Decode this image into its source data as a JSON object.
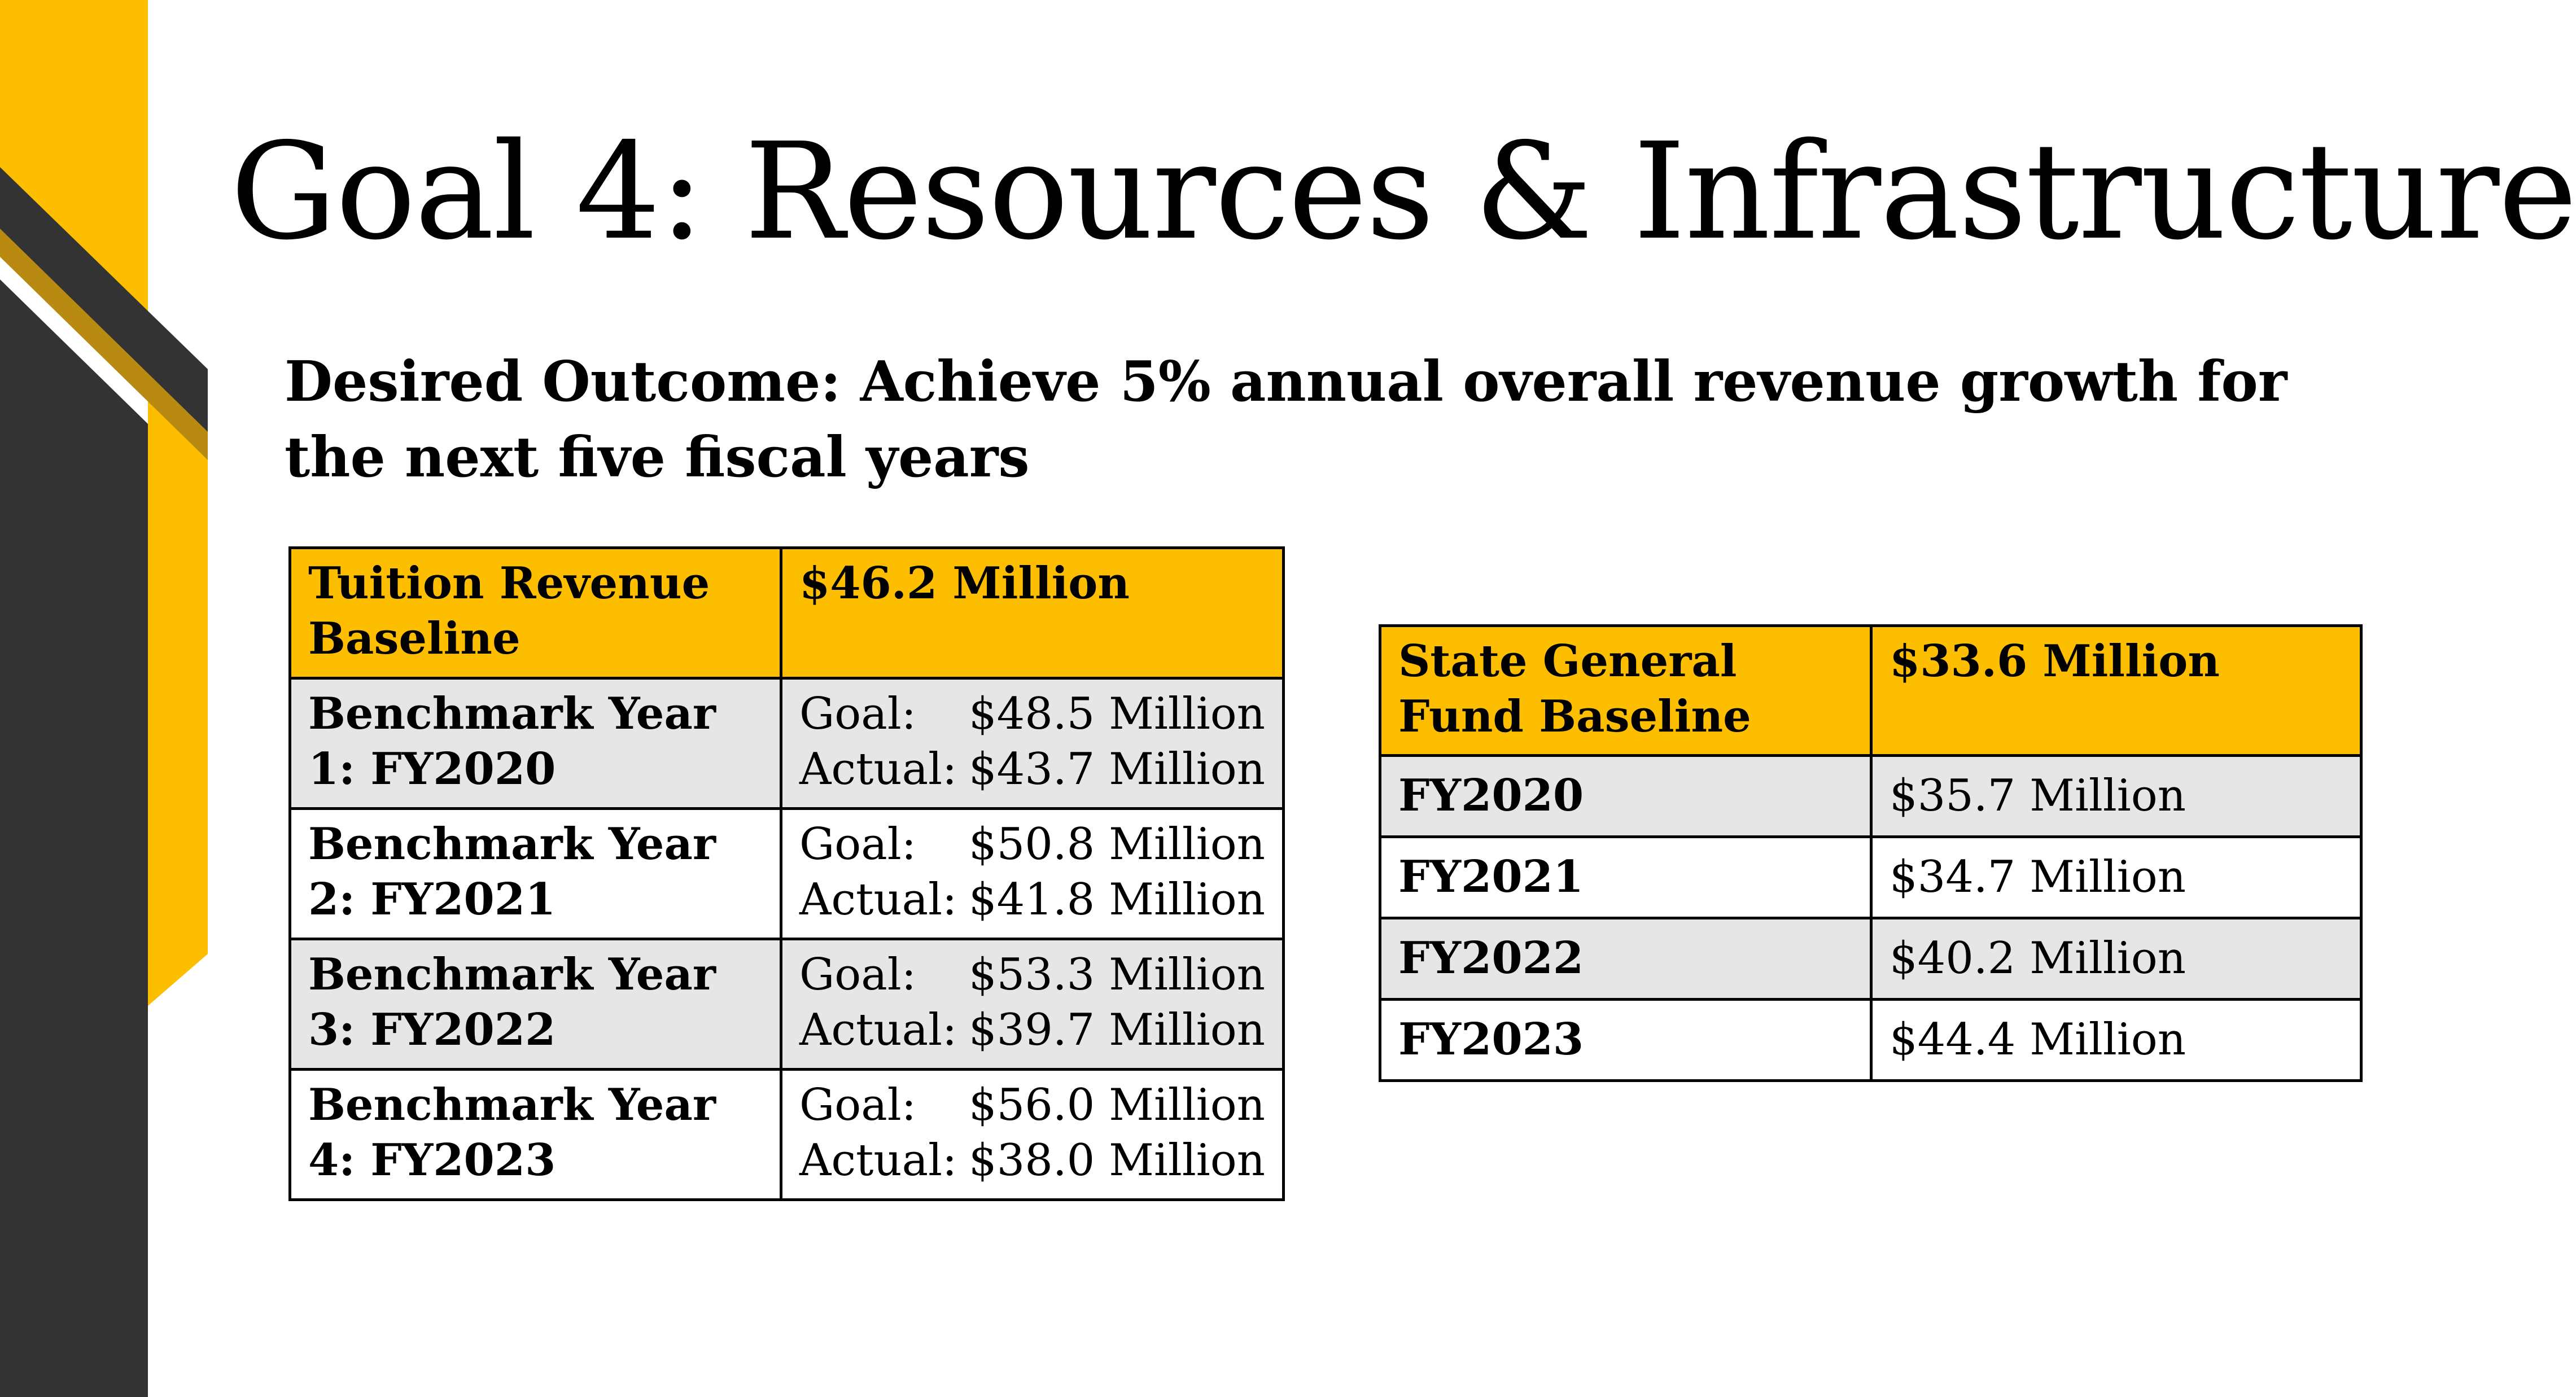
{
  "slide": {
    "title": "Goal 4:  Resources & Infrastructure",
    "subtitle": "Desired Outcome:  Achieve 5% annual overall revenue growth for the next five fiscal years",
    "colors": {
      "accent": "#fdbe00",
      "dark": "#333333",
      "shaded_row": "#e6e6e6"
    }
  },
  "tuition_table": {
    "header": {
      "label": "Tuition Revenue Baseline",
      "value": "$46.2 Million"
    },
    "rows": [
      {
        "label": "Benchmark Year 1: FY2020",
        "goal_label": "Goal:",
        "goal": "$48.5 Million",
        "actual_label": "Actual:",
        "actual": "$43.7 Million"
      },
      {
        "label": "Benchmark Year 2: FY2021",
        "goal_label": "Goal:",
        "goal": "$50.8 Million",
        "actual_label": "Actual:",
        "actual": "$41.8 Million"
      },
      {
        "label": "Benchmark Year 3: FY2022",
        "goal_label": "Goal:",
        "goal": "$53.3 Million",
        "actual_label": "Actual:",
        "actual": "$39.7 Million"
      },
      {
        "label": "Benchmark Year 4: FY2023",
        "goal_label": "Goal:",
        "goal": "$56.0 Million",
        "actual_label": "Actual:",
        "actual": "$38.0 Million"
      }
    ]
  },
  "state_table": {
    "header": {
      "label": "State General Fund Baseline",
      "value": "$33.6 Million"
    },
    "rows": [
      {
        "label": "FY2020",
        "value": "$35.7 Million"
      },
      {
        "label": "FY2021",
        "value": "$34.7 Million"
      },
      {
        "label": "FY2022",
        "value": "$40.2 Million"
      },
      {
        "label": "FY2023",
        "value": "$44.4 Million"
      }
    ]
  }
}
